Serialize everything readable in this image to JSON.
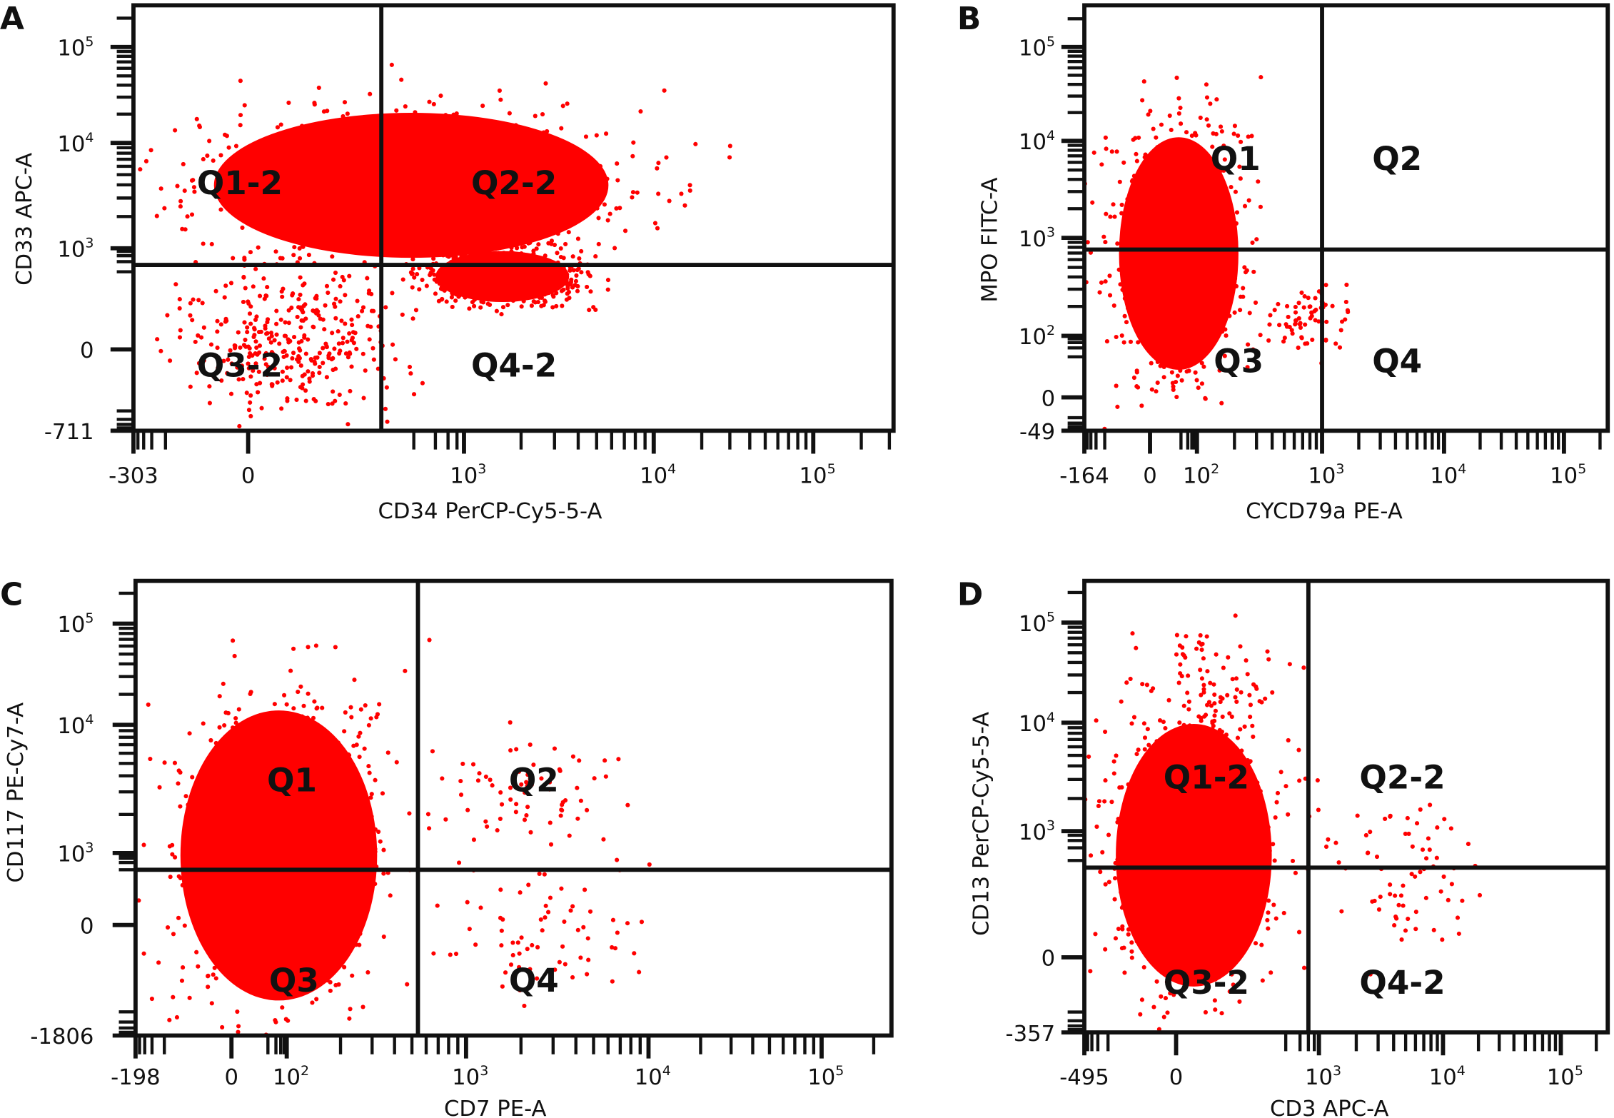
{
  "chart_data": [
    {
      "panel": "A",
      "type": "scatter",
      "color": "#ff0000",
      "xlabel": "CD34 PerCP-Cy5-5-A",
      "ylabel": "CD33 APC-A",
      "x_scale": "biexponential",
      "y_scale": "biexponential",
      "x_ticks": [
        {
          "value": -303,
          "label": "-303"
        },
        {
          "value": 0,
          "label": "0"
        },
        {
          "value": 1000,
          "base": "10",
          "exp": "3"
        },
        {
          "value": 10000,
          "base": "10",
          "exp": "4"
        },
        {
          "value": 100000,
          "base": "10",
          "exp": "5"
        }
      ],
      "y_ticks": [
        {
          "value": -711,
          "label": "-711"
        },
        {
          "value": 0,
          "label": "0"
        },
        {
          "value": 1000,
          "base": "10",
          "exp": "3"
        },
        {
          "value": 10000,
          "base": "10",
          "exp": "4"
        },
        {
          "value": 100000,
          "base": "10",
          "exp": "5"
        }
      ],
      "quadrant_gate": {
        "x": 70,
        "y": 320
      },
      "quadrant_labels": [
        "Q1-2",
        "Q2-2",
        "Q3-2",
        "Q4-2"
      ],
      "populations": [
        {
          "x_range": [
            -20,
            8000
          ],
          "y_range": [
            300,
            25000
          ],
          "density": "dense"
        },
        {
          "x_range": [
            300,
            4000
          ],
          "y_range": [
            20,
            1000
          ],
          "density": "dense"
        },
        {
          "x_range": [
            -100,
            300
          ],
          "y_range": [
            -200,
            300
          ],
          "density": "medium"
        }
      ]
    },
    {
      "panel": "B",
      "type": "scatter",
      "color": "#ff0000",
      "xlabel": "CYCD79a PE-A",
      "ylabel": "MPO FITC-A",
      "x_scale": "biexponential",
      "y_scale": "biexponential",
      "x_ticks": [
        {
          "value": -164,
          "label": "-164"
        },
        {
          "value": 0,
          "label": "0"
        },
        {
          "value": 100,
          "base": "10",
          "exp": "2"
        },
        {
          "value": 1000,
          "base": "10",
          "exp": "3"
        },
        {
          "value": 10000,
          "base": "10",
          "exp": "4"
        },
        {
          "value": 100000,
          "base": "10",
          "exp": "5"
        }
      ],
      "y_ticks": [
        {
          "value": -49,
          "label": "-49"
        },
        {
          "value": 0,
          "label": "0"
        },
        {
          "value": 100,
          "base": "10",
          "exp": "2"
        },
        {
          "value": 1000,
          "base": "10",
          "exp": "3"
        },
        {
          "value": 10000,
          "base": "10",
          "exp": "4"
        },
        {
          "value": 100000,
          "base": "10",
          "exp": "5"
        }
      ],
      "quadrant_gate": {
        "x": 1000,
        "y": 760
      },
      "quadrant_labels": [
        "Q1",
        "Q2",
        "Q3",
        "Q4"
      ],
      "populations": [
        {
          "x_range": [
            -20,
            250
          ],
          "y_range": [
            2,
            15000
          ],
          "density": "dense"
        },
        {
          "x_range": [
            300,
            2000
          ],
          "y_range": [
            30,
            400
          ],
          "density": "sparse"
        }
      ]
    },
    {
      "panel": "C",
      "type": "scatter",
      "color": "#ff0000",
      "xlabel": "CD7 PE-A",
      "ylabel": "CD117 PE-Cy7-A",
      "x_scale": "biexponential",
      "y_scale": "biexponential",
      "x_ticks": [
        {
          "value": -198,
          "label": "-198"
        },
        {
          "value": 0,
          "label": "0"
        },
        {
          "value": 100,
          "base": "10",
          "exp": "2"
        },
        {
          "value": 1000,
          "base": "10",
          "exp": "3"
        },
        {
          "value": 10000,
          "base": "10",
          "exp": "4"
        },
        {
          "value": 100000,
          "base": "10",
          "exp": "5"
        }
      ],
      "y_ticks": [
        {
          "value": -1806,
          "label": "-1806"
        },
        {
          "value": 0,
          "label": "0"
        },
        {
          "value": 1000,
          "base": "10",
          "exp": "3"
        },
        {
          "value": 10000,
          "base": "10",
          "exp": "4"
        },
        {
          "value": 100000,
          "base": "10",
          "exp": "5"
        }
      ],
      "quadrant_gate": {
        "x": 540,
        "y": 200
      },
      "quadrant_labels": [
        "Q1",
        "Q2",
        "Q3",
        "Q4"
      ],
      "populations": [
        {
          "x_range": [
            -34,
            380
          ],
          "y_range": [
            -500,
            20000
          ],
          "density": "dense"
        },
        {
          "x_range": [
            500,
            20000
          ],
          "y_range": [
            -300,
            500
          ],
          "density": "sparse"
        },
        {
          "x_range": [
            500,
            8000
          ],
          "y_range": [
            1000,
            8000
          ],
          "density": "sparse"
        }
      ]
    },
    {
      "panel": "D",
      "type": "scatter",
      "color": "#ff0000",
      "xlabel": "CD3 APC-A",
      "ylabel": "CD13 PerCP-Cy5-5-A",
      "x_scale": "biexponential",
      "y_scale": "biexponential",
      "x_ticks": [
        {
          "value": -495,
          "label": "-495"
        },
        {
          "value": 0,
          "label": "0"
        },
        {
          "value": 1000,
          "base": "10",
          "exp": "3"
        },
        {
          "value": 10000,
          "base": "10",
          "exp": "4"
        },
        {
          "value": 100000,
          "base": "10",
          "exp": "5"
        }
      ],
      "y_ticks": [
        {
          "value": -357,
          "label": "-357"
        },
        {
          "value": 0,
          "label": "0"
        },
        {
          "value": 1000,
          "base": "10",
          "exp": "3"
        },
        {
          "value": 10000,
          "base": "10",
          "exp": "4"
        },
        {
          "value": 100000,
          "base": "10",
          "exp": "5"
        }
      ],
      "quadrant_gate": {
        "x": 600,
        "y": 135
      },
      "quadrant_labels": [
        "Q1-2",
        "Q2-2",
        "Q3-2",
        "Q4-2"
      ],
      "populations": [
        {
          "x_range": [
            -120,
            170
          ],
          "y_range": [
            -30,
            13600
          ],
          "density": "dense"
        },
        {
          "x_range": [
            1000,
            30000
          ],
          "y_range": [
            0,
            3000
          ],
          "density": "sparse"
        },
        {
          "x_range": [
            -100,
            800
          ],
          "y_range": [
            10000,
            100000
          ],
          "density": "sparse"
        }
      ]
    }
  ]
}
